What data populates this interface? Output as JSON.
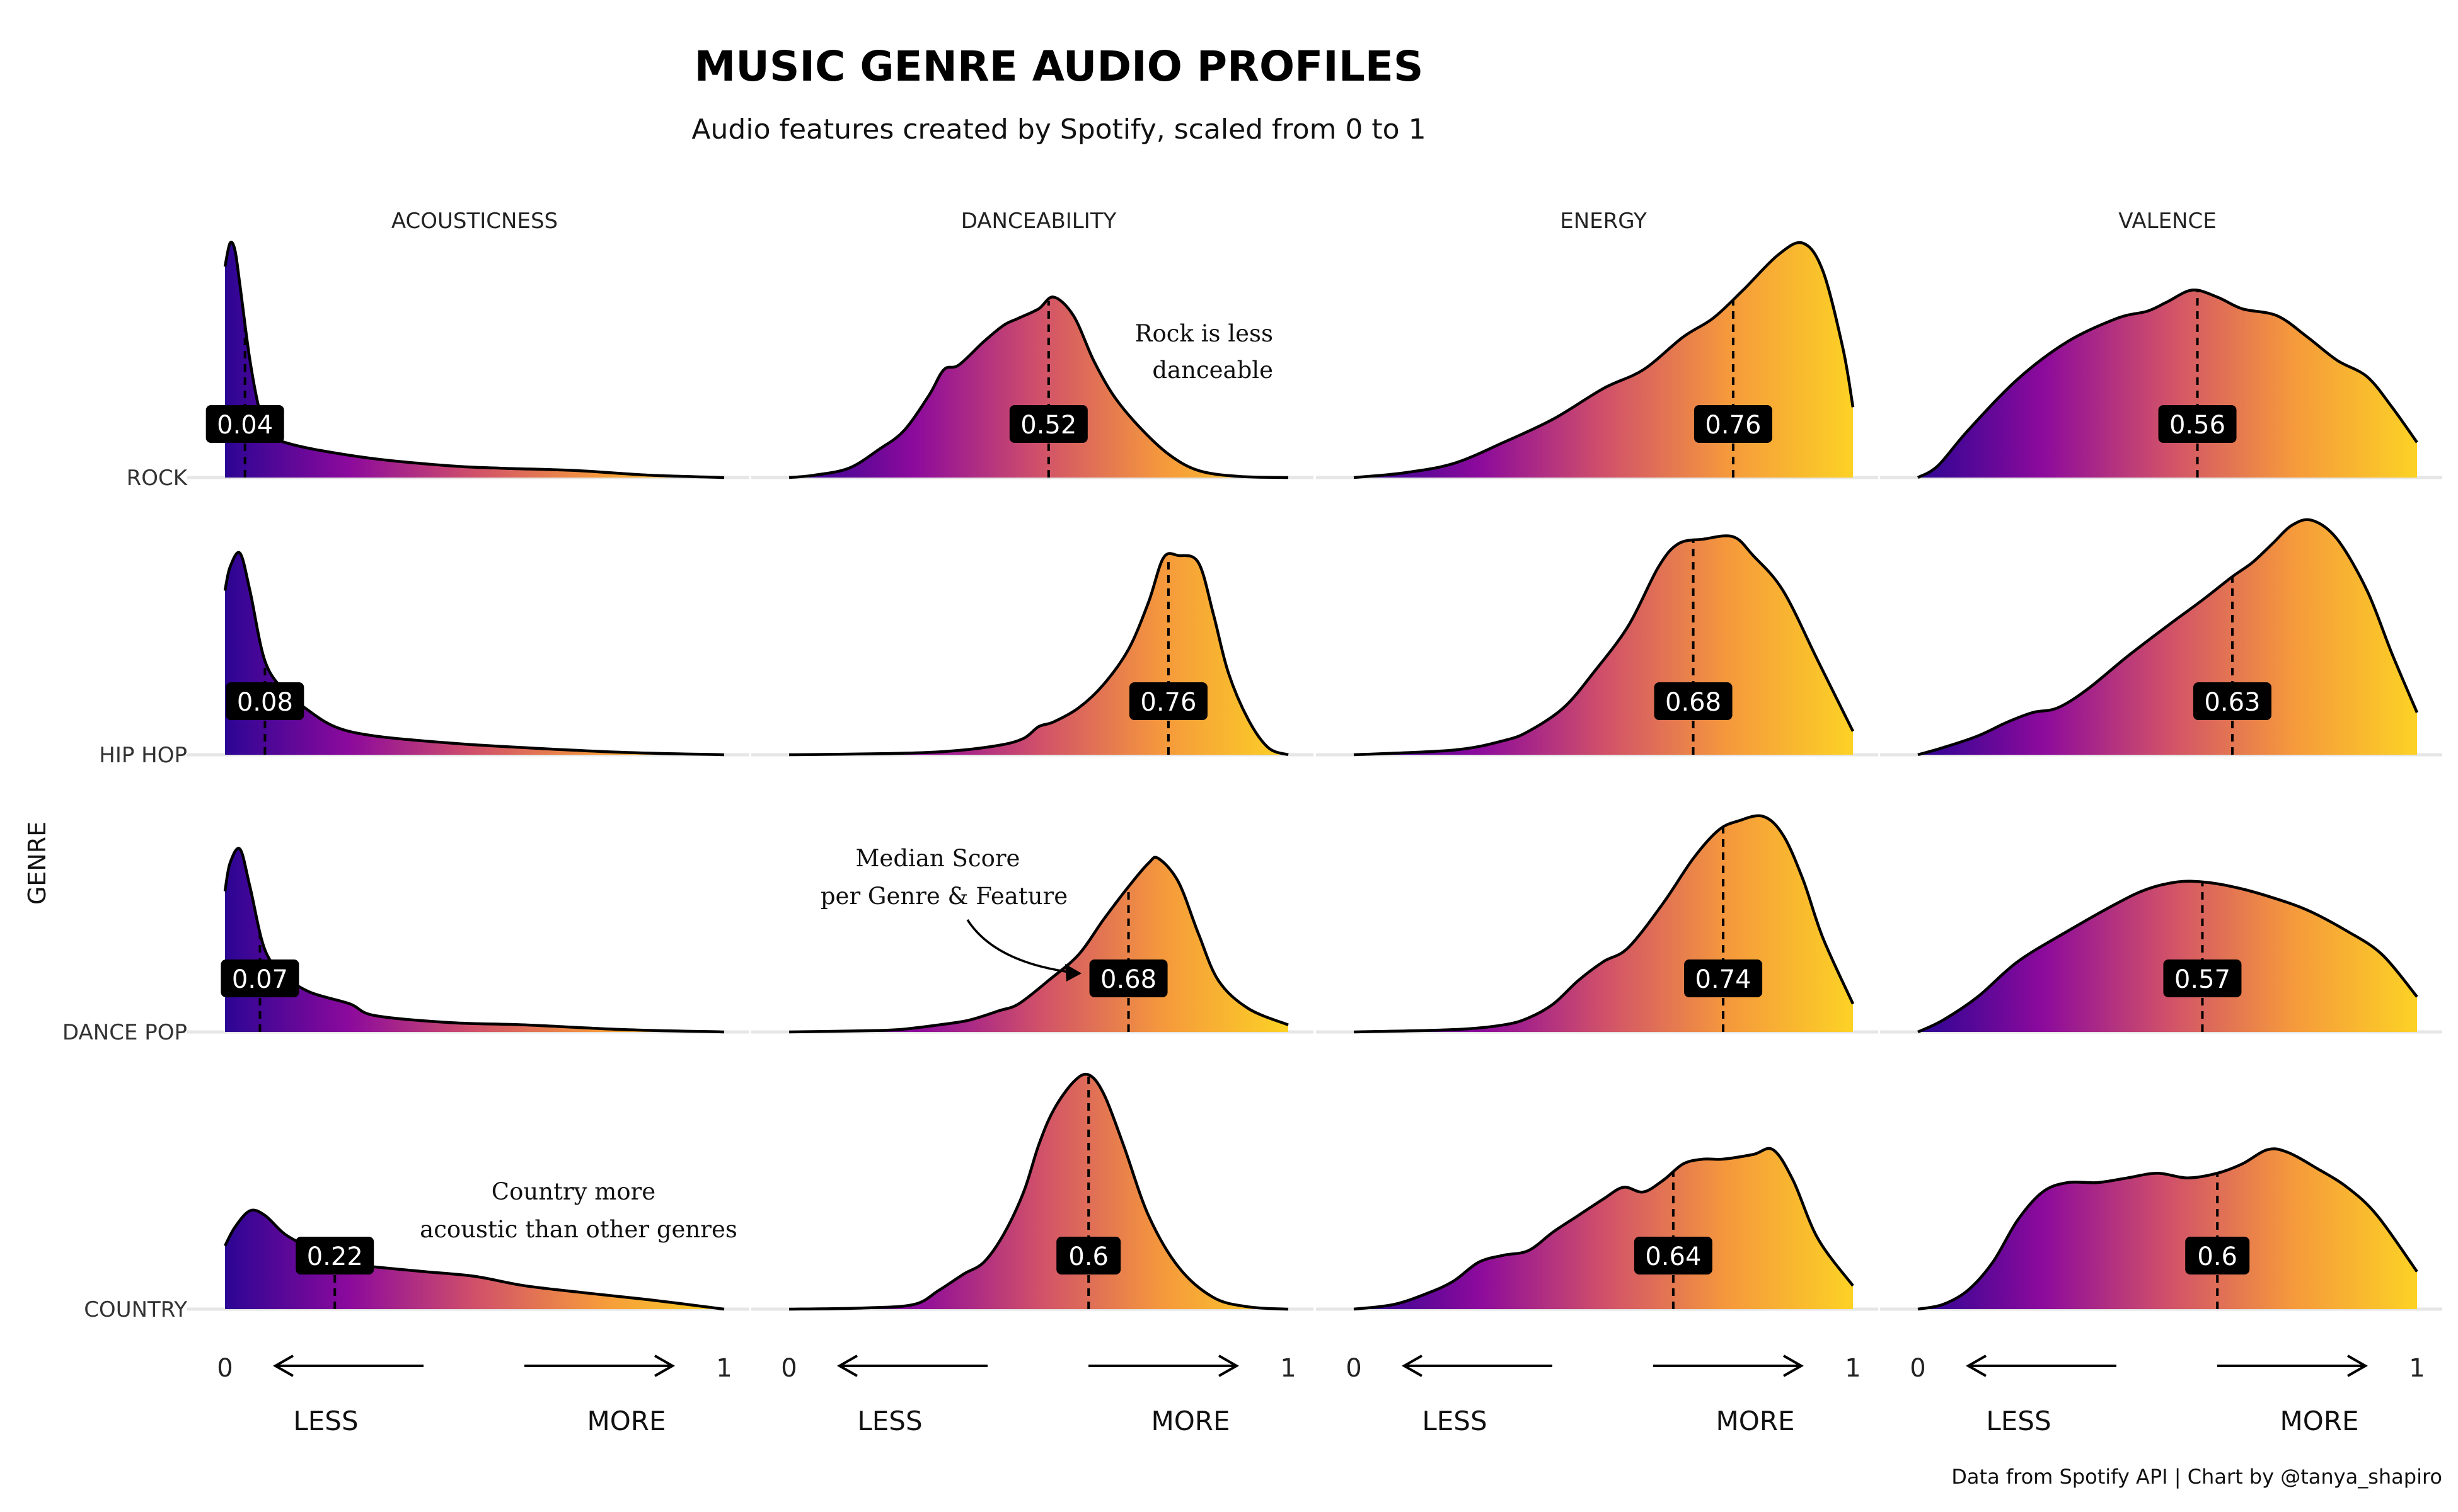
{
  "title": "MUSIC GENRE AUDIO PROFILES",
  "subtitle": "Audio features created by Spotify, scaled from 0 to 1",
  "caption": "Data from Spotify API | Chart by @tanya_shapiro",
  "ylabel": "GENRE",
  "scale": {
    "min_label": "0",
    "max_label": "1",
    "less_label": "LESS",
    "more_label": "MORE"
  },
  "gradient_colors": [
    "#2c0594",
    "#8c0a9c",
    "#d0506a",
    "#f5993c",
    "#fcd225"
  ],
  "annotations": {
    "rock_dance": [
      "Rock is less",
      "danceable"
    ],
    "median": [
      "Median Score",
      "per Genre & Feature"
    ],
    "country": [
      "Country more",
      "acoustic than other genres"
    ]
  },
  "chart_data": {
    "type": "ridgeline-density",
    "features": [
      "ACOUSTICNESS",
      "DANCEABILITY",
      "ENERGY",
      "VALENCE"
    ],
    "genres": [
      "ROCK",
      "HIP HOP",
      "DANCE POP",
      "COUNTRY"
    ],
    "xlim": [
      0,
      1
    ],
    "medians": {
      "ROCK": [
        0.04,
        0.52,
        0.76,
        0.56
      ],
      "HIP HOP": [
        0.08,
        0.76,
        0.68,
        0.63
      ],
      "DANCE POP": [
        0.07,
        0.68,
        0.74,
        0.57
      ],
      "COUNTRY": [
        0.22,
        0.6,
        0.64,
        0.6
      ]
    },
    "median_labels": {
      "ROCK": [
        "0.04",
        "0.52",
        "0.76",
        "0.56"
      ],
      "HIP HOP": [
        "0.08",
        "0.76",
        "0.68",
        "0.63"
      ],
      "DANCE POP": [
        "0.07",
        "0.68",
        "0.74",
        "0.57"
      ],
      "COUNTRY": [
        "0.22",
        "0.6",
        "0.64",
        "0.6"
      ]
    },
    "densities": {
      "ROCK": [
        [
          [
            0,
            0.9
          ],
          [
            0.01,
            1.0
          ],
          [
            0.02,
            0.97
          ],
          [
            0.03,
            0.82
          ],
          [
            0.05,
            0.5
          ],
          [
            0.07,
            0.28
          ],
          [
            0.09,
            0.18
          ],
          [
            0.12,
            0.15
          ],
          [
            0.18,
            0.12
          ],
          [
            0.3,
            0.08
          ],
          [
            0.45,
            0.05
          ],
          [
            0.55,
            0.04
          ],
          [
            0.7,
            0.03
          ],
          [
            0.85,
            0.01
          ],
          [
            1,
            0
          ]
        ],
        [
          [
            0,
            0
          ],
          [
            0.05,
            0.01
          ],
          [
            0.12,
            0.04
          ],
          [
            0.18,
            0.12
          ],
          [
            0.23,
            0.2
          ],
          [
            0.28,
            0.35
          ],
          [
            0.31,
            0.46
          ],
          [
            0.34,
            0.48
          ],
          [
            0.39,
            0.58
          ],
          [
            0.43,
            0.65
          ],
          [
            0.46,
            0.68
          ],
          [
            0.5,
            0.72
          ],
          [
            0.53,
            0.77
          ],
          [
            0.57,
            0.69
          ],
          [
            0.61,
            0.5
          ],
          [
            0.65,
            0.35
          ],
          [
            0.7,
            0.22
          ],
          [
            0.76,
            0.1
          ],
          [
            0.82,
            0.03
          ],
          [
            0.9,
            0.005
          ],
          [
            1,
            0
          ]
        ],
        [
          [
            0,
            0
          ],
          [
            0.1,
            0.02
          ],
          [
            0.2,
            0.06
          ],
          [
            0.3,
            0.15
          ],
          [
            0.4,
            0.25
          ],
          [
            0.5,
            0.38
          ],
          [
            0.58,
            0.46
          ],
          [
            0.66,
            0.6
          ],
          [
            0.72,
            0.68
          ],
          [
            0.78,
            0.8
          ],
          [
            0.85,
            0.95
          ],
          [
            0.9,
            1.0
          ],
          [
            0.94,
            0.88
          ],
          [
            0.98,
            0.55
          ],
          [
            1,
            0.3
          ]
        ],
        [
          [
            0,
            0
          ],
          [
            0.04,
            0.05
          ],
          [
            0.1,
            0.2
          ],
          [
            0.2,
            0.42
          ],
          [
            0.3,
            0.58
          ],
          [
            0.4,
            0.68
          ],
          [
            0.46,
            0.71
          ],
          [
            0.5,
            0.75
          ],
          [
            0.55,
            0.8
          ],
          [
            0.6,
            0.77
          ],
          [
            0.65,
            0.72
          ],
          [
            0.72,
            0.69
          ],
          [
            0.78,
            0.6
          ],
          [
            0.84,
            0.5
          ],
          [
            0.9,
            0.43
          ],
          [
            0.95,
            0.3
          ],
          [
            1,
            0.15
          ]
        ]
      ],
      "HIP HOP": [
        [
          [
            0,
            0.7
          ],
          [
            0.01,
            0.8
          ],
          [
            0.03,
            0.86
          ],
          [
            0.05,
            0.7
          ],
          [
            0.08,
            0.4
          ],
          [
            0.12,
            0.27
          ],
          [
            0.16,
            0.2
          ],
          [
            0.22,
            0.12
          ],
          [
            0.3,
            0.08
          ],
          [
            0.45,
            0.05
          ],
          [
            0.6,
            0.03
          ],
          [
            0.8,
            0.01
          ],
          [
            1,
            0
          ]
        ],
        [
          [
            0,
            0
          ],
          [
            0.2,
            0.005
          ],
          [
            0.32,
            0.015
          ],
          [
            0.42,
            0.04
          ],
          [
            0.47,
            0.07
          ],
          [
            0.5,
            0.12
          ],
          [
            0.53,
            0.14
          ],
          [
            0.58,
            0.2
          ],
          [
            0.63,
            0.3
          ],
          [
            0.68,
            0.45
          ],
          [
            0.72,
            0.65
          ],
          [
            0.75,
            0.84
          ],
          [
            0.78,
            0.85
          ],
          [
            0.82,
            0.82
          ],
          [
            0.85,
            0.6
          ],
          [
            0.88,
            0.35
          ],
          [
            0.92,
            0.15
          ],
          [
            0.96,
            0.03
          ],
          [
            1,
            0
          ]
        ],
        [
          [
            0,
            0
          ],
          [
            0.2,
            0.02
          ],
          [
            0.3,
            0.06
          ],
          [
            0.35,
            0.1
          ],
          [
            0.42,
            0.2
          ],
          [
            0.48,
            0.35
          ],
          [
            0.55,
            0.55
          ],
          [
            0.61,
            0.8
          ],
          [
            0.65,
            0.9
          ],
          [
            0.7,
            0.92
          ],
          [
            0.76,
            0.93
          ],
          [
            0.8,
            0.85
          ],
          [
            0.86,
            0.7
          ],
          [
            0.93,
            0.4
          ],
          [
            1,
            0.1
          ]
        ],
        [
          [
            0,
            0
          ],
          [
            0.05,
            0.03
          ],
          [
            0.12,
            0.08
          ],
          [
            0.18,
            0.14
          ],
          [
            0.23,
            0.18
          ],
          [
            0.28,
            0.2
          ],
          [
            0.34,
            0.28
          ],
          [
            0.42,
            0.42
          ],
          [
            0.5,
            0.55
          ],
          [
            0.57,
            0.66
          ],
          [
            0.63,
            0.76
          ],
          [
            0.67,
            0.82
          ],
          [
            0.71,
            0.9
          ],
          [
            0.75,
            0.98
          ],
          [
            0.79,
            1.0
          ],
          [
            0.84,
            0.92
          ],
          [
            0.9,
            0.7
          ],
          [
            0.95,
            0.43
          ],
          [
            1,
            0.18
          ]
        ]
      ],
      "DANCE POP": [
        [
          [
            0,
            0.6
          ],
          [
            0.01,
            0.72
          ],
          [
            0.03,
            0.78
          ],
          [
            0.05,
            0.62
          ],
          [
            0.08,
            0.35
          ],
          [
            0.12,
            0.24
          ],
          [
            0.17,
            0.17
          ],
          [
            0.25,
            0.12
          ],
          [
            0.3,
            0.07
          ],
          [
            0.45,
            0.04
          ],
          [
            0.6,
            0.03
          ],
          [
            0.8,
            0.01
          ],
          [
            1,
            0
          ]
        ],
        [
          [
            0,
            0
          ],
          [
            0.15,
            0.005
          ],
          [
            0.22,
            0.01
          ],
          [
            0.3,
            0.03
          ],
          [
            0.36,
            0.05
          ],
          [
            0.42,
            0.09
          ],
          [
            0.46,
            0.12
          ],
          [
            0.52,
            0.22
          ],
          [
            0.58,
            0.33
          ],
          [
            0.63,
            0.48
          ],
          [
            0.68,
            0.62
          ],
          [
            0.72,
            0.72
          ],
          [
            0.74,
            0.74
          ],
          [
            0.78,
            0.64
          ],
          [
            0.82,
            0.42
          ],
          [
            0.86,
            0.22
          ],
          [
            0.92,
            0.1
          ],
          [
            1,
            0.03
          ]
        ],
        [
          [
            0,
            0
          ],
          [
            0.2,
            0.01
          ],
          [
            0.3,
            0.03
          ],
          [
            0.35,
            0.06
          ],
          [
            0.4,
            0.12
          ],
          [
            0.45,
            0.22
          ],
          [
            0.5,
            0.3
          ],
          [
            0.55,
            0.36
          ],
          [
            0.62,
            0.55
          ],
          [
            0.68,
            0.74
          ],
          [
            0.73,
            0.86
          ],
          [
            0.77,
            0.9
          ],
          [
            0.82,
            0.92
          ],
          [
            0.86,
            0.84
          ],
          [
            0.9,
            0.65
          ],
          [
            0.94,
            0.4
          ],
          [
            1,
            0.12
          ]
        ],
        [
          [
            0,
            0
          ],
          [
            0.05,
            0.05
          ],
          [
            0.12,
            0.15
          ],
          [
            0.2,
            0.3
          ],
          [
            0.3,
            0.43
          ],
          [
            0.4,
            0.55
          ],
          [
            0.46,
            0.61
          ],
          [
            0.52,
            0.64
          ],
          [
            0.57,
            0.64
          ],
          [
            0.63,
            0.62
          ],
          [
            0.7,
            0.58
          ],
          [
            0.78,
            0.52
          ],
          [
            0.86,
            0.43
          ],
          [
            0.93,
            0.33
          ],
          [
            1,
            0.15
          ]
        ]
      ],
      "COUNTRY": [
        [
          [
            0,
            0.27
          ],
          [
            0.02,
            0.35
          ],
          [
            0.05,
            0.42
          ],
          [
            0.08,
            0.4
          ],
          [
            0.12,
            0.32
          ],
          [
            0.17,
            0.26
          ],
          [
            0.22,
            0.2
          ],
          [
            0.3,
            0.18
          ],
          [
            0.4,
            0.16
          ],
          [
            0.5,
            0.14
          ],
          [
            0.6,
            0.1
          ],
          [
            0.72,
            0.07
          ],
          [
            0.85,
            0.04
          ],
          [
            1,
            0
          ]
        ],
        [
          [
            0,
            0
          ],
          [
            0.15,
            0.005
          ],
          [
            0.25,
            0.02
          ],
          [
            0.3,
            0.08
          ],
          [
            0.35,
            0.15
          ],
          [
            0.39,
            0.2
          ],
          [
            0.43,
            0.32
          ],
          [
            0.47,
            0.5
          ],
          [
            0.5,
            0.7
          ],
          [
            0.53,
            0.85
          ],
          [
            0.57,
            0.97
          ],
          [
            0.6,
            1.0
          ],
          [
            0.63,
            0.92
          ],
          [
            0.67,
            0.7
          ],
          [
            0.72,
            0.4
          ],
          [
            0.78,
            0.18
          ],
          [
            0.85,
            0.05
          ],
          [
            0.92,
            0.01
          ],
          [
            1,
            0
          ]
        ],
        [
          [
            0,
            0
          ],
          [
            0.08,
            0.02
          ],
          [
            0.15,
            0.07
          ],
          [
            0.2,
            0.12
          ],
          [
            0.25,
            0.2
          ],
          [
            0.3,
            0.23
          ],
          [
            0.35,
            0.25
          ],
          [
            0.4,
            0.33
          ],
          [
            0.45,
            0.4
          ],
          [
            0.5,
            0.47
          ],
          [
            0.54,
            0.52
          ],
          [
            0.58,
            0.5
          ],
          [
            0.62,
            0.55
          ],
          [
            0.66,
            0.62
          ],
          [
            0.7,
            0.64
          ],
          [
            0.74,
            0.64
          ],
          [
            0.8,
            0.66
          ],
          [
            0.84,
            0.68
          ],
          [
            0.88,
            0.55
          ],
          [
            0.93,
            0.3
          ],
          [
            1,
            0.1
          ]
        ],
        [
          [
            0,
            0
          ],
          [
            0.05,
            0.02
          ],
          [
            0.1,
            0.08
          ],
          [
            0.15,
            0.2
          ],
          [
            0.2,
            0.38
          ],
          [
            0.25,
            0.5
          ],
          [
            0.3,
            0.54
          ],
          [
            0.36,
            0.54
          ],
          [
            0.42,
            0.56
          ],
          [
            0.48,
            0.58
          ],
          [
            0.54,
            0.56
          ],
          [
            0.6,
            0.58
          ],
          [
            0.65,
            0.62
          ],
          [
            0.7,
            0.68
          ],
          [
            0.74,
            0.67
          ],
          [
            0.8,
            0.6
          ],
          [
            0.86,
            0.52
          ],
          [
            0.92,
            0.4
          ],
          [
            1,
            0.16
          ]
        ]
      ]
    },
    "grid": false
  }
}
